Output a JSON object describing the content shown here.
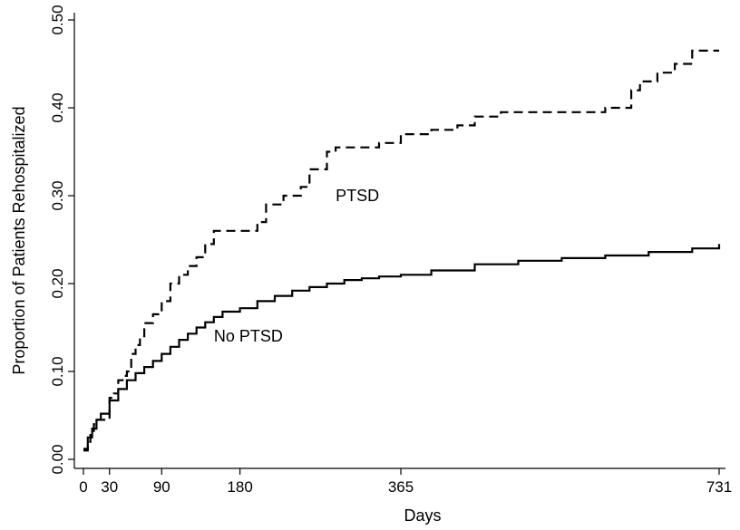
{
  "chart_data": {
    "type": "line",
    "title": "",
    "xlabel": "Days",
    "ylabel": "Proportion of Patients Rehospitalized",
    "xlim": [
      0,
      731
    ],
    "ylim": [
      0,
      0.5
    ],
    "xticks": [
      0,
      30,
      90,
      180,
      365,
      731
    ],
    "yticks": [
      0.0,
      0.1,
      0.2,
      0.3,
      0.4,
      0.5
    ],
    "ytick_labels": [
      "0.00",
      "0.10",
      "0.20",
      "0.30",
      "0.40",
      "0.50"
    ],
    "grid": false,
    "series": [
      {
        "name": "PTSD",
        "style": "dashed-step",
        "color": "#000000",
        "x": [
          0,
          5,
          8,
          12,
          16,
          20,
          30,
          35,
          40,
          45,
          50,
          55,
          60,
          65,
          70,
          80,
          90,
          100,
          110,
          120,
          130,
          140,
          150,
          175,
          200,
          210,
          230,
          250,
          260,
          280,
          290,
          310,
          340,
          365,
          400,
          430,
          450,
          480,
          500,
          560,
          600,
          630,
          640,
          660,
          680,
          700,
          731
        ],
        "y": [
          0.01,
          0.02,
          0.03,
          0.04,
          0.045,
          0.045,
          0.07,
          0.075,
          0.09,
          0.095,
          0.1,
          0.12,
          0.13,
          0.14,
          0.155,
          0.165,
          0.18,
          0.2,
          0.21,
          0.22,
          0.23,
          0.245,
          0.26,
          0.26,
          0.27,
          0.29,
          0.3,
          0.31,
          0.33,
          0.35,
          0.355,
          0.355,
          0.36,
          0.37,
          0.375,
          0.38,
          0.39,
          0.395,
          0.395,
          0.395,
          0.4,
          0.42,
          0.43,
          0.44,
          0.45,
          0.465,
          0.465
        ]
      },
      {
        "name": "No PTSD",
        "style": "solid",
        "color": "#000000",
        "x": [
          0,
          5,
          10,
          15,
          20,
          30,
          40,
          50,
          60,
          70,
          80,
          90,
          100,
          110,
          120,
          130,
          140,
          150,
          160,
          180,
          200,
          220,
          240,
          260,
          280,
          300,
          320,
          340,
          365,
          400,
          450,
          500,
          550,
          600,
          650,
          700,
          731
        ],
        "y": [
          0.012,
          0.025,
          0.035,
          0.045,
          0.052,
          0.067,
          0.08,
          0.09,
          0.098,
          0.105,
          0.112,
          0.12,
          0.128,
          0.136,
          0.143,
          0.15,
          0.156,
          0.162,
          0.168,
          0.172,
          0.18,
          0.186,
          0.192,
          0.196,
          0.2,
          0.204,
          0.206,
          0.208,
          0.21,
          0.215,
          0.222,
          0.226,
          0.229,
          0.232,
          0.236,
          0.24,
          0.245
        ]
      }
    ],
    "annotations": [
      {
        "text": "PTSD",
        "x": 290,
        "y": 0.3
      },
      {
        "text": "No PTSD",
        "x": 150,
        "y": 0.14
      }
    ]
  }
}
